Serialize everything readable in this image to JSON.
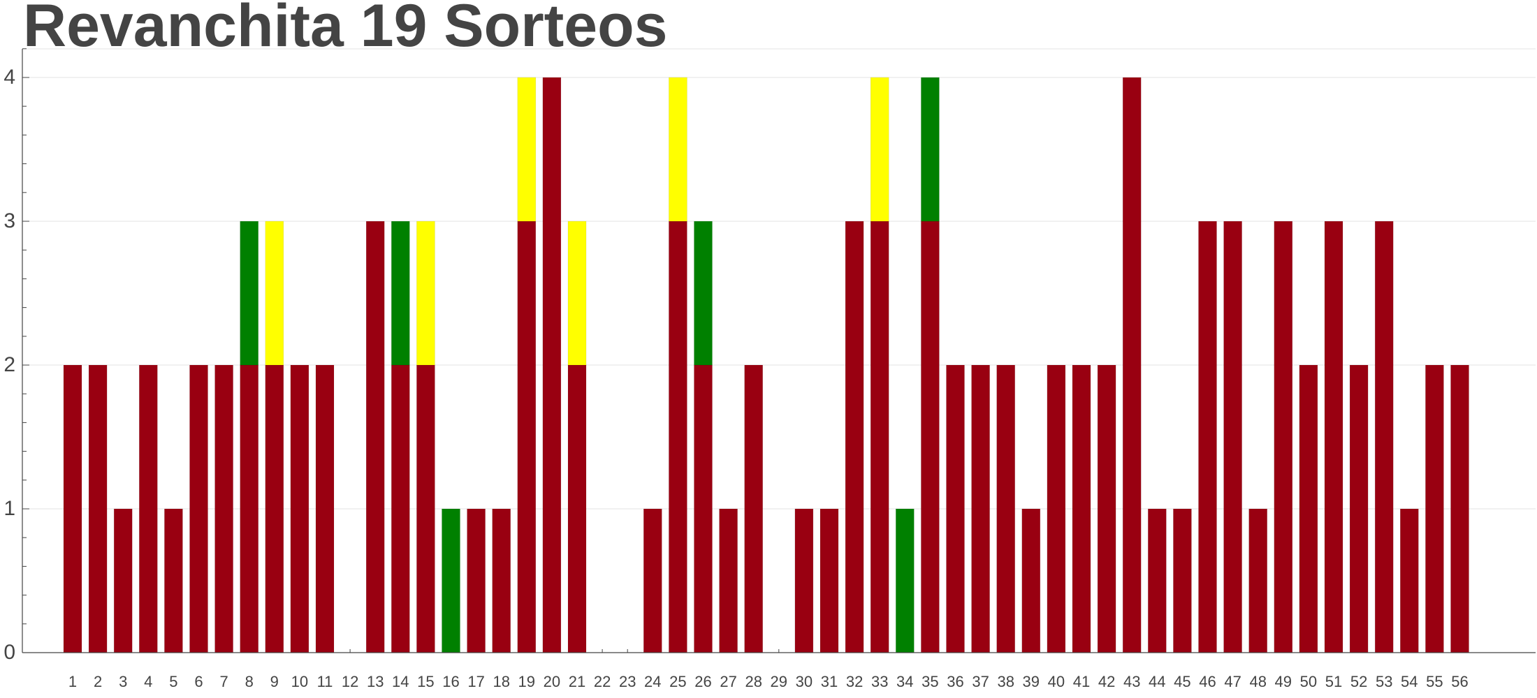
{
  "chart_data": {
    "type": "bar",
    "stacked": true,
    "title": "Revanchita 19 Sorteos",
    "xlabel": "",
    "ylabel": "",
    "ylim": [
      0,
      4.2
    ],
    "yticks": [
      0,
      1,
      2,
      3,
      4
    ],
    "grid": true,
    "legend": "none",
    "categories": [
      "1",
      "2",
      "3",
      "4",
      "5",
      "6",
      "7",
      "8",
      "9",
      "10",
      "11",
      "12",
      "13",
      "14",
      "15",
      "16",
      "17",
      "18",
      "19",
      "20",
      "21",
      "22",
      "23",
      "24",
      "25",
      "26",
      "27",
      "28",
      "29",
      "30",
      "31",
      "32",
      "33",
      "34",
      "35",
      "36",
      "37",
      "38",
      "39",
      "40",
      "41",
      "42",
      "43",
      "44",
      "45",
      "46",
      "47",
      "48",
      "49",
      "50",
      "51",
      "52",
      "53",
      "54",
      "55",
      "56"
    ],
    "series": [
      {
        "color": "#990011",
        "values": [
          2,
          2,
          1,
          2,
          1,
          2,
          2,
          2,
          2,
          2,
          2,
          0,
          3,
          2,
          2,
          0,
          1,
          1,
          3,
          4,
          2,
          0,
          0,
          1,
          3,
          2,
          1,
          2,
          0,
          1,
          1,
          3,
          3,
          0,
          3,
          2,
          2,
          2,
          1,
          2,
          2,
          2,
          4,
          1,
          1,
          3,
          3,
          1,
          3,
          2,
          3,
          2,
          3,
          1,
          2,
          2
        ]
      },
      {
        "color": "#008000",
        "values": [
          0,
          0,
          0,
          0,
          0,
          0,
          0,
          1,
          0,
          0,
          0,
          0,
          0,
          1,
          0,
          1,
          0,
          0,
          0,
          0,
          0,
          0,
          0,
          0,
          0,
          1,
          0,
          0,
          0,
          0,
          0,
          0,
          0,
          1,
          1,
          0,
          0,
          0,
          0,
          0,
          0,
          0,
          0,
          0,
          0,
          0,
          0,
          0,
          0,
          0,
          0,
          0,
          0,
          0,
          0,
          0
        ]
      },
      {
        "color": "#ffff00",
        "values": [
          0,
          0,
          0,
          0,
          0,
          0,
          0,
          0,
          1,
          0,
          0,
          0,
          0,
          0,
          1,
          0,
          0,
          0,
          1,
          0,
          1,
          0,
          0,
          0,
          1,
          0,
          0,
          0,
          0,
          0,
          0,
          0,
          1,
          0,
          0,
          0,
          0,
          0,
          0,
          0,
          0,
          0,
          0,
          0,
          0,
          0,
          0,
          0,
          0,
          0,
          0,
          0,
          0,
          0,
          0,
          0
        ]
      }
    ]
  }
}
